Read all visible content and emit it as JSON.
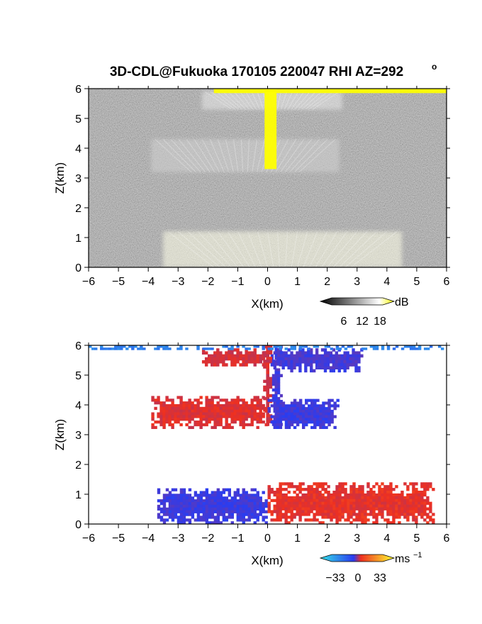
{
  "chart_data": [
    {
      "type": "heatmap",
      "title": "3D-CDL@Fukuoka 170105 220047 RHI AZ=292",
      "title_superscript": "o",
      "xlabel": "X(km)",
      "ylabel": "Z(km)",
      "xlim": [
        -6,
        6
      ],
      "ylim": [
        0,
        6
      ],
      "xticks": [
        -6,
        -5,
        -4,
        -3,
        -2,
        -1,
        0,
        1,
        2,
        3,
        4,
        5,
        6
      ],
      "yticks": [
        0,
        1,
        2,
        3,
        4,
        5,
        6
      ],
      "variable": "reflectivity",
      "colorbar": {
        "unit": "dB",
        "ticks": [
          "6",
          "12",
          "18"
        ],
        "range": [
          0,
          22
        ],
        "colors": [
          "#000000",
          "#ffffff",
          "#ffff00"
        ]
      },
      "features": [
        {
          "name": "upper cloud layer",
          "x": [
            -2.2,
            2.5
          ],
          "z": [
            5.3,
            5.9
          ],
          "intensity_db": 10
        },
        {
          "name": "mid cloud layer",
          "x": [
            -3.9,
            2.4
          ],
          "z": [
            3.2,
            4.3
          ],
          "intensity_db": 9
        },
        {
          "name": "near-ground scatter fan",
          "x": [
            -3.5,
            4.5
          ],
          "z": [
            0,
            1.2
          ],
          "intensity_db": 12
        },
        {
          "name": "saturated column",
          "x": [
            -0.1,
            0.3
          ],
          "z": [
            3.3,
            6.0
          ],
          "intensity_db": 22
        },
        {
          "name": "saturated top band",
          "x": [
            -1.8,
            6.0
          ],
          "z": [
            5.85,
            6.0
          ],
          "intensity_db": 22
        }
      ]
    },
    {
      "type": "heatmap",
      "xlabel": "X(km)",
      "ylabel": "Z(km)",
      "xlim": [
        -6,
        6
      ],
      "ylim": [
        0,
        6
      ],
      "xticks": [
        -6,
        -5,
        -4,
        -3,
        -2,
        -1,
        0,
        1,
        2,
        3,
        4,
        5,
        6
      ],
      "yticks": [
        0,
        1,
        2,
        3,
        4,
        5,
        6
      ],
      "variable": "doppler velocity",
      "colorbar": {
        "unit": "ms",
        "unit_superscript": "−1",
        "ticks": [
          "−33",
          "0",
          "33"
        ],
        "range": [
          -33,
          33
        ],
        "colors": [
          "#35e1e6",
          "#2a3cf0",
          "#ee3020",
          "#ffff30"
        ]
      },
      "regions": [
        {
          "name": "upper layer approaching",
          "x": [
            -2.2,
            0.1
          ],
          "z": [
            5.3,
            5.9
          ],
          "velocity": 8
        },
        {
          "name": "upper layer receding",
          "x": [
            0.1,
            3.2
          ],
          "z": [
            5.1,
            5.9
          ],
          "velocity": -8
        },
        {
          "name": "column approaching",
          "x": [
            -0.15,
            0.15
          ],
          "z": [
            3.3,
            6.0
          ],
          "velocity": 8
        },
        {
          "name": "column receding",
          "x": [
            0.15,
            0.5
          ],
          "z": [
            3.3,
            6.0
          ],
          "velocity": -8
        },
        {
          "name": "mid layer approaching",
          "x": [
            -3.9,
            0.0
          ],
          "z": [
            3.2,
            4.3
          ],
          "velocity": 9
        },
        {
          "name": "mid layer receding",
          "x": [
            0.0,
            2.4
          ],
          "z": [
            3.2,
            4.2
          ],
          "velocity": -9
        },
        {
          "name": "low layer receding",
          "x": [
            -3.7,
            0.0
          ],
          "z": [
            0,
            1.2
          ],
          "velocity": -9
        },
        {
          "name": "low layer approaching",
          "x": [
            0.0,
            5.6
          ],
          "z": [
            0,
            1.4
          ],
          "velocity": 10
        },
        {
          "name": "top band",
          "x": [
            -6.0,
            6.0
          ],
          "z": [
            5.85,
            6.0
          ],
          "velocity": -20
        }
      ]
    }
  ]
}
